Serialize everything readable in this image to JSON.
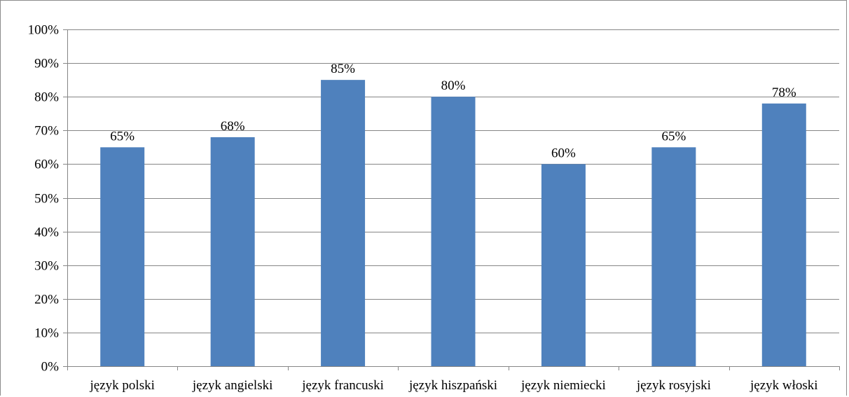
{
  "colors": {
    "bar": "#4f81bd",
    "grid": "#868686",
    "axis": "#868686",
    "text": "#000000"
  },
  "chart_data": {
    "type": "bar",
    "title": "",
    "xlabel": "",
    "ylabel": "",
    "categories": [
      "język polski",
      "język angielski",
      "język francuski",
      "język hiszpański",
      "język niemiecki",
      "język rosyjski",
      "język włoski"
    ],
    "values": [
      65,
      68,
      85,
      80,
      60,
      65,
      78
    ],
    "data_labels": [
      "65%",
      "68%",
      "85%",
      "80%",
      "60%",
      "65%",
      "78%"
    ],
    "ylim": [
      0,
      100
    ],
    "y_ticks": [
      0,
      10,
      20,
      30,
      40,
      50,
      60,
      70,
      80,
      90,
      100
    ],
    "y_tick_labels": [
      "0%",
      "10%",
      "20%",
      "30%",
      "40%",
      "50%",
      "60%",
      "70%",
      "80%",
      "90%",
      "100%"
    ],
    "grid": true,
    "legend": "none"
  }
}
